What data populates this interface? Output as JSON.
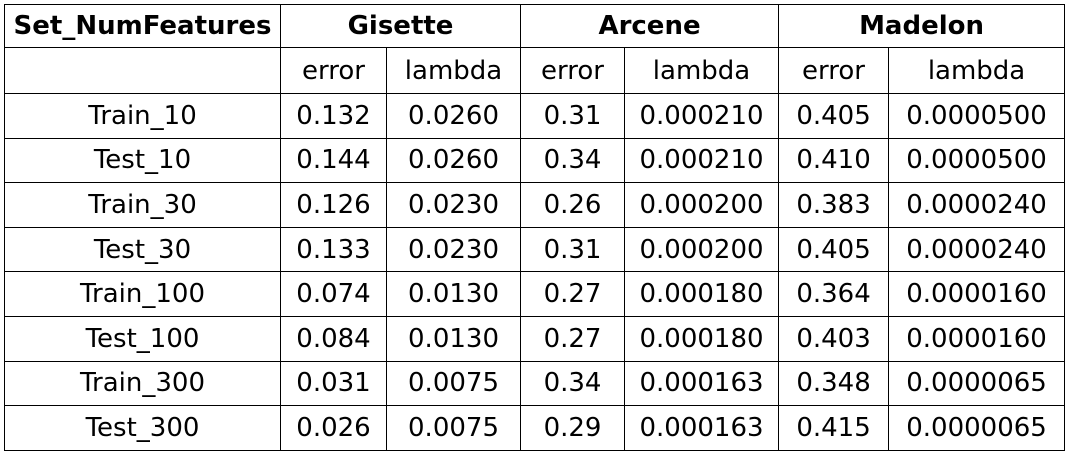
{
  "table": {
    "corner_header": "Set_NumFeatures",
    "datasets": [
      "Gisette",
      "Arcene",
      "Madelon"
    ],
    "sub_headers": [
      "error",
      "lambda",
      "error",
      "lambda",
      "error",
      "lambda"
    ],
    "rows": [
      {
        "label": "Train_10",
        "cells": [
          "0.132",
          "0.0260",
          "0.31",
          "0.000210",
          "0.405",
          "0.0000500"
        ]
      },
      {
        "label": "Test_10",
        "cells": [
          "0.144",
          "0.0260",
          "0.34",
          "0.000210",
          "0.410",
          "0.0000500"
        ]
      },
      {
        "label": "Train_30",
        "cells": [
          "0.126",
          "0.0230",
          "0.26",
          "0.000200",
          "0.383",
          "0.0000240"
        ]
      },
      {
        "label": "Test_30",
        "cells": [
          "0.133",
          "0.0230",
          "0.31",
          "0.000200",
          "0.405",
          "0.0000240"
        ]
      },
      {
        "label": "Train_100",
        "cells": [
          "0.074",
          "0.0130",
          "0.27",
          "0.000180",
          "0.364",
          "0.0000160"
        ]
      },
      {
        "label": "Test_100",
        "cells": [
          "0.084",
          "0.0130",
          "0.27",
          "0.000180",
          "0.403",
          "0.0000160"
        ]
      },
      {
        "label": "Train_300",
        "cells": [
          "0.031",
          "0.0075",
          "0.34",
          "0.000163",
          "0.348",
          "0.0000065"
        ]
      },
      {
        "label": "Test_300",
        "cells": [
          "0.026",
          "0.0075",
          "0.29",
          "0.000163",
          "0.415",
          "0.0000065"
        ]
      }
    ]
  }
}
